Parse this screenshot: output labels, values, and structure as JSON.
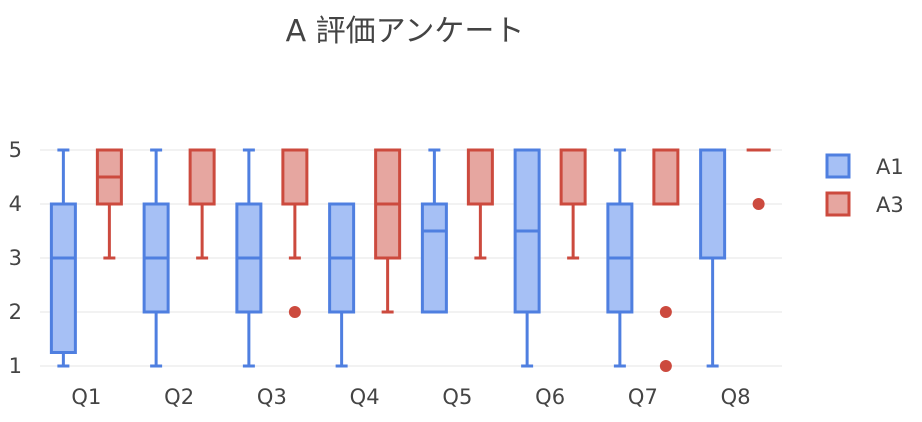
{
  "chart_data": {
    "type": "box",
    "title": "A 評価アンケート",
    "categories": [
      "Q1",
      "Q2",
      "Q3",
      "Q4",
      "Q5",
      "Q6",
      "Q7",
      "Q8"
    ],
    "y_ticks": [
      1,
      2,
      3,
      4,
      5
    ],
    "ylim": [
      0.85,
      5.15
    ],
    "grid": true,
    "legend_position": "right",
    "series": [
      {
        "name": "A1",
        "color": "#4f7fe0",
        "fill": "#a6c0f5",
        "boxes": [
          {
            "category": "Q1",
            "min": 1,
            "q1": 1.25,
            "median": 3,
            "q3": 4,
            "max": 5,
            "outliers": []
          },
          {
            "category": "Q2",
            "min": 1,
            "q1": 2,
            "median": 3,
            "q3": 4,
            "max": 5,
            "outliers": []
          },
          {
            "category": "Q3",
            "min": 1,
            "q1": 2,
            "median": 3,
            "q3": 4,
            "max": 5,
            "outliers": []
          },
          {
            "category": "Q4",
            "min": 1,
            "q1": 2,
            "median": 3,
            "q3": 4,
            "max": 4,
            "outliers": []
          },
          {
            "category": "Q5",
            "min": 2,
            "q1": 2,
            "median": 3.5,
            "q3": 4,
            "max": 5,
            "outliers": []
          },
          {
            "category": "Q6",
            "min": 1,
            "q1": 2,
            "median": 3.5,
            "q3": 5,
            "max": 5,
            "outliers": []
          },
          {
            "category": "Q7",
            "min": 1,
            "q1": 2,
            "median": 3,
            "q3": 4,
            "max": 5,
            "outliers": []
          },
          {
            "category": "Q8",
            "min": 1,
            "q1": 3,
            "median": 5,
            "q3": 5,
            "max": 5,
            "outliers": []
          }
        ]
      },
      {
        "name": "A3",
        "color": "#cc4a3e",
        "fill": "#e6a6a0",
        "boxes": [
          {
            "category": "Q1",
            "min": 3,
            "q1": 4,
            "median": 4.5,
            "q3": 5,
            "max": 5,
            "outliers": []
          },
          {
            "category": "Q2",
            "min": 3,
            "q1": 4,
            "median": 5,
            "q3": 5,
            "max": 5,
            "outliers": []
          },
          {
            "category": "Q3",
            "min": 3,
            "q1": 4,
            "median": 5,
            "q3": 5,
            "max": 5,
            "outliers": [
              2
            ]
          },
          {
            "category": "Q4",
            "min": 2,
            "q1": 3,
            "median": 4,
            "q3": 5,
            "max": 5,
            "outliers": []
          },
          {
            "category": "Q5",
            "min": 3,
            "q1": 4,
            "median": 5,
            "q3": 5,
            "max": 5,
            "outliers": []
          },
          {
            "category": "Q6",
            "min": 3,
            "q1": 4,
            "median": 5,
            "q3": 5,
            "max": 5,
            "outliers": []
          },
          {
            "category": "Q7",
            "min": 4,
            "q1": 4,
            "median": 5,
            "q3": 5,
            "max": 5,
            "outliers": [
              2,
              1
            ]
          },
          {
            "category": "Q8",
            "min": 5,
            "q1": 5,
            "median": 5,
            "q3": 5,
            "max": 5,
            "outliers": [
              4
            ]
          }
        ]
      }
    ]
  }
}
